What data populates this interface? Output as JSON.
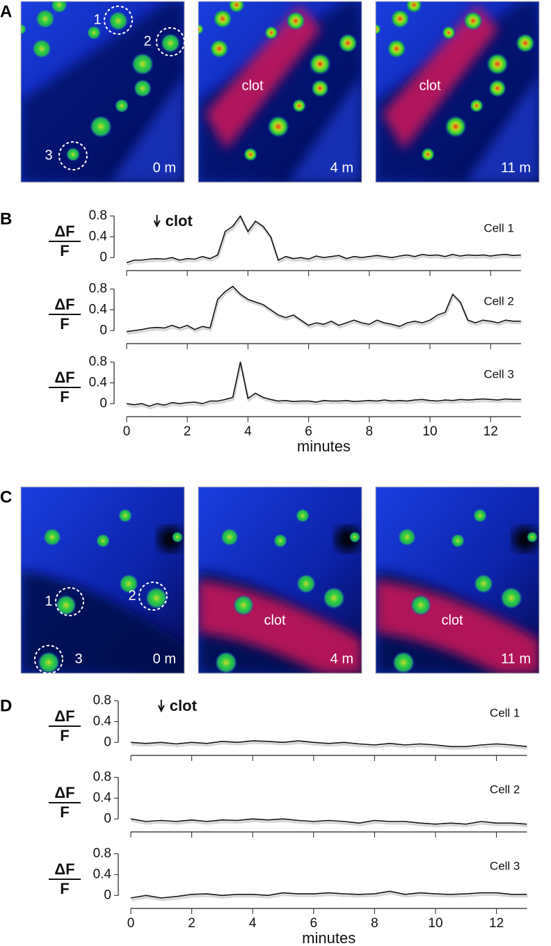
{
  "image_panels": [
    {
      "label": "A",
      "images": [
        {
          "time": "0 m",
          "circles": [
            "1",
            "2",
            "3"
          ]
        },
        {
          "time": "4 m",
          "annotation": "clot"
        },
        {
          "time": "11 m",
          "annotation": "clot"
        }
      ]
    },
    {
      "label": "C",
      "images": [
        {
          "time": "0 m",
          "circles": [
            "1",
            "2",
            "3"
          ]
        },
        {
          "time": "4 m",
          "annotation": "clot"
        },
        {
          "time": "11 m",
          "annotation": "clot"
        }
      ]
    }
  ],
  "trace_panels": [
    "B",
    "D"
  ],
  "chart_data": [
    {
      "type": "line",
      "panel": 0,
      "ylabel_numerator": "ΔF",
      "ylabel_denominator": "F",
      "annotation": {
        "text": "clot",
        "x": 1
      },
      "x": [
        0,
        0.25,
        0.5,
        0.75,
        1,
        1.25,
        1.5,
        1.75,
        2,
        2.25,
        2.5,
        2.75,
        3,
        3.25,
        3.5,
        3.75,
        4,
        4.25,
        4.5,
        4.75,
        5,
        5.25,
        5.5,
        5.75,
        6,
        6.25,
        6.5,
        6.75,
        7,
        7.25,
        7.5,
        7.75,
        8,
        8.25,
        8.5,
        8.75,
        9,
        9.25,
        9.5,
        9.75,
        10,
        10.25,
        10.5,
        10.75,
        11,
        11.25,
        11.5,
        11.75,
        12,
        12.25,
        12.5,
        12.75,
        13
      ],
      "series": [
        {
          "name": "Cell 1",
          "color": "#111111",
          "values": [
            -0.1,
            -0.05,
            -0.05,
            -0.03,
            -0.02,
            -0.03,
            0,
            -0.05,
            -0.02,
            -0.03,
            0.02,
            -0.02,
            0.05,
            0.5,
            0.6,
            0.8,
            0.5,
            0.7,
            0.6,
            0.4,
            -0.05,
            0.02,
            -0.02,
            0,
            -0.03,
            0.03,
            0,
            0.02,
            0.04,
            -0.02,
            0.02,
            0,
            0.02,
            0.04,
            0.02,
            0,
            0.03,
            0.05,
            0.02,
            0.06,
            0.04,
            0.05,
            0.02,
            0.06,
            0.03,
            0.05,
            0.04,
            0.05,
            0.03,
            0.05,
            0.06,
            0.04,
            0.05
          ]
        }
      ],
      "xlim": [
        0,
        13
      ],
      "ylim": [
        -0.25,
        0.9
      ],
      "yticks": [
        0,
        0.4,
        0.8
      ],
      "xticks": [
        0,
        2,
        4,
        6,
        8,
        10,
        12
      ]
    },
    {
      "type": "line",
      "panel": 0,
      "ylabel_numerator": "ΔF",
      "ylabel_denominator": "F",
      "x": [
        0,
        0.25,
        0.5,
        0.75,
        1,
        1.25,
        1.5,
        1.75,
        2,
        2.25,
        2.5,
        2.75,
        3,
        3.25,
        3.5,
        3.75,
        4,
        4.25,
        4.5,
        4.75,
        5,
        5.25,
        5.5,
        5.75,
        6,
        6.25,
        6.5,
        6.75,
        7,
        7.25,
        7.5,
        7.75,
        8,
        8.25,
        8.5,
        8.75,
        9,
        9.25,
        9.5,
        9.75,
        10,
        10.25,
        10.5,
        10.75,
        11,
        11.25,
        11.5,
        11.75,
        12,
        12.25,
        12.5,
        12.75,
        13
      ],
      "series": [
        {
          "name": "Cell 2",
          "color": "#111111",
          "values": [
            -0.02,
            0,
            0.02,
            0.05,
            0.06,
            0.05,
            0.1,
            0.05,
            0.1,
            0.02,
            0.08,
            0.05,
            0.6,
            0.75,
            0.85,
            0.7,
            0.6,
            0.55,
            0.5,
            0.4,
            0.3,
            0.25,
            0.3,
            0.2,
            0.1,
            0.15,
            0.12,
            0.18,
            0.1,
            0.15,
            0.2,
            0.15,
            0.12,
            0.2,
            0.15,
            0.12,
            0.08,
            0.15,
            0.18,
            0.15,
            0.2,
            0.3,
            0.35,
            0.7,
            0.55,
            0.2,
            0.15,
            0.2,
            0.18,
            0.15,
            0.2,
            0.18,
            0.18
          ]
        }
      ],
      "xlim": [
        0,
        13
      ],
      "ylim": [
        -0.25,
        0.9
      ],
      "yticks": [
        0,
        0.4,
        0.8
      ],
      "xticks": [
        0,
        2,
        4,
        6,
        8,
        10,
        12
      ]
    },
    {
      "type": "line",
      "panel": 0,
      "ylabel_numerator": "ΔF",
      "ylabel_denominator": "F",
      "xlabel": "minutes",
      "x": [
        0,
        0.25,
        0.5,
        0.75,
        1,
        1.25,
        1.5,
        1.75,
        2,
        2.25,
        2.5,
        2.75,
        3,
        3.25,
        3.5,
        3.75,
        4,
        4.25,
        4.5,
        4.75,
        5,
        5.25,
        5.5,
        5.75,
        6,
        6.25,
        6.5,
        6.75,
        7,
        7.25,
        7.5,
        7.75,
        8,
        8.25,
        8.5,
        8.75,
        9,
        9.25,
        9.5,
        9.75,
        10,
        10.25,
        10.5,
        10.75,
        11,
        11.25,
        11.5,
        11.75,
        12,
        12.25,
        12.5,
        12.75,
        13
      ],
      "series": [
        {
          "name": "Cell 3",
          "color": "#111111",
          "values": [
            0,
            -0.02,
            0,
            -0.05,
            0,
            -0.03,
            0.02,
            0,
            0.02,
            0.03,
            0,
            0.05,
            0.05,
            0.08,
            0.12,
            0.8,
            0.1,
            0.2,
            0.12,
            0.08,
            0.05,
            0.06,
            0.04,
            0.05,
            0.05,
            0.03,
            0.06,
            0.05,
            0.05,
            0.06,
            0.04,
            0.05,
            0.06,
            0.05,
            0.07,
            0.05,
            0.06,
            0.05,
            0.07,
            0.08,
            0.06,
            0.05,
            0.07,
            0.06,
            0.08,
            0.07,
            0.08,
            0.09,
            0.08,
            0.07,
            0.09,
            0.08,
            0.08
          ]
        }
      ],
      "xlim": [
        0,
        13
      ],
      "ylim": [
        -0.25,
        0.9
      ],
      "yticks": [
        0,
        0.4,
        0.8
      ],
      "xticks": [
        0,
        2,
        4,
        6,
        8,
        10,
        12
      ]
    },
    {
      "type": "line",
      "panel": 1,
      "ylabel_numerator": "ΔF",
      "ylabel_denominator": "F",
      "annotation": {
        "text": "clot",
        "x": 1
      },
      "x": [
        0,
        0.5,
        1,
        1.5,
        2,
        2.5,
        3,
        3.5,
        4,
        4.5,
        5,
        5.5,
        6,
        6.5,
        7,
        7.5,
        8,
        8.5,
        9,
        9.5,
        10,
        10.5,
        11,
        11.5,
        12,
        12.5,
        13
      ],
      "series": [
        {
          "name": "Cell 1",
          "color": "#111111",
          "values": [
            0,
            -0.02,
            0,
            -0.03,
            0,
            -0.02,
            0.02,
            0,
            0.03,
            0.02,
            0,
            0.03,
            0,
            -0.02,
            0,
            -0.03,
            -0.05,
            -0.02,
            -0.05,
            -0.03,
            -0.05,
            -0.08,
            -0.08,
            -0.05,
            -0.03,
            -0.05,
            -0.08
          ]
        }
      ],
      "xlim": [
        0,
        13
      ],
      "ylim": [
        -0.25,
        0.9
      ],
      "yticks": [
        0,
        0.4,
        0.8
      ],
      "xticks": [
        0,
        2,
        4,
        6,
        8,
        10,
        12
      ]
    },
    {
      "type": "line",
      "panel": 1,
      "ylabel_numerator": "ΔF",
      "ylabel_denominator": "F",
      "x": [
        0,
        0.5,
        1,
        1.5,
        2,
        2.5,
        3,
        3.5,
        4,
        4.5,
        5,
        5.5,
        6,
        6.5,
        7,
        7.5,
        8,
        8.5,
        9,
        9.5,
        10,
        10.5,
        11,
        11.5,
        12,
        12.5,
        13
      ],
      "series": [
        {
          "name": "Cell 2",
          "color": "#111111",
          "values": [
            0,
            -0.05,
            -0.03,
            -0.05,
            -0.02,
            -0.05,
            -0.02,
            -0.03,
            0,
            -0.02,
            0,
            -0.03,
            -0.05,
            -0.03,
            -0.05,
            -0.08,
            -0.03,
            -0.05,
            -0.05,
            -0.08,
            -0.1,
            -0.08,
            -0.1,
            -0.05,
            -0.08,
            -0.08,
            -0.1
          ]
        }
      ],
      "xlim": [
        0,
        13
      ],
      "ylim": [
        -0.25,
        0.9
      ],
      "yticks": [
        0,
        0.4,
        0.8
      ],
      "xticks": [
        0,
        2,
        4,
        6,
        8,
        10,
        12
      ]
    },
    {
      "type": "line",
      "panel": 1,
      "ylabel_numerator": "ΔF",
      "ylabel_denominator": "F",
      "xlabel": "minutes",
      "x": [
        0,
        0.5,
        1,
        1.5,
        2,
        2.5,
        3,
        3.5,
        4,
        4.5,
        5,
        5.5,
        6,
        6.5,
        7,
        7.5,
        8,
        8.5,
        9,
        9.5,
        10,
        10.5,
        11,
        11.5,
        12,
        12.5,
        13
      ],
      "series": [
        {
          "name": "Cell 3",
          "color": "#111111",
          "values": [
            -0.05,
            0,
            -0.05,
            -0.02,
            0.02,
            0.03,
            0,
            0.02,
            0.02,
            0,
            0.05,
            0.03,
            0.03,
            0.05,
            0.03,
            0.02,
            0.03,
            0.08,
            0.02,
            0.05,
            0.03,
            0.02,
            0.03,
            0.05,
            0.05,
            0.02,
            0.02
          ]
        }
      ],
      "xlim": [
        0,
        13
      ],
      "ylim": [
        -0.25,
        0.9
      ],
      "yticks": [
        0,
        0.4,
        0.8
      ],
      "xticks": [
        0,
        2,
        4,
        6,
        8,
        10,
        12
      ]
    }
  ]
}
